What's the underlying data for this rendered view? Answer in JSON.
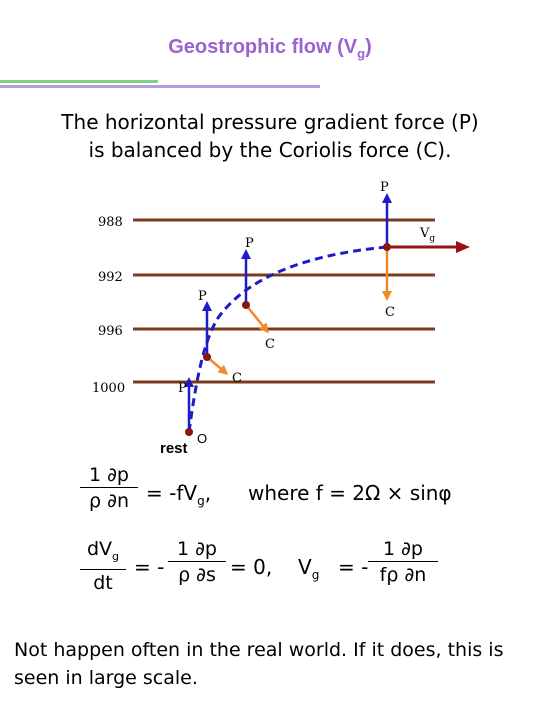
{
  "title": {
    "main": "Geostrophic flow (V",
    "sub": "g",
    "close": ")"
  },
  "statement": {
    "line1": "The horizontal pressure gradient force (P)",
    "line2": "is balanced by the Coriolis force (C)."
  },
  "diagram": {
    "isobars": [
      "988",
      "992",
      "996",
      "1000"
    ],
    "force_p": "P",
    "force_c": "C",
    "velocity": "V",
    "velocity_sub": "g",
    "rest": "rest",
    "origin": "O",
    "colors": {
      "isobar": "#7a3b1c",
      "pressure_arrow": "#1c1cc8",
      "coriolis_arrow": "#f08a28",
      "trajectory": "#1c1cc8",
      "velocity_arrow": "#9b1010",
      "parcel": "#8b1515"
    }
  },
  "equations": {
    "eq1_numer": "1 ∂p",
    "eq1_denom": "ρ ∂n",
    "eq1_rhs": "= -fV",
    "eq1_rhs_sub": "g",
    "eq1_comma": ",",
    "eq1_where": "where f = 2Ω × sinφ",
    "eq2_numer": "dV",
    "eq2_numer_sub": "g",
    "eq2_denom": "dt",
    "eq2_mid": "= -",
    "eq2_frac_numer": "1 ∂p",
    "eq2_frac_denom": "ρ ∂s",
    "eq2_zero": "= 0,",
    "eq3_lhs": "V",
    "eq3_lhs_sub": "g",
    "eq3_mid": "= -",
    "eq3_frac_numer": "1 ∂p",
    "eq3_frac_denom": "fρ ∂n"
  },
  "note": "Not happen often in the real world. If it does, this is seen in large scale."
}
